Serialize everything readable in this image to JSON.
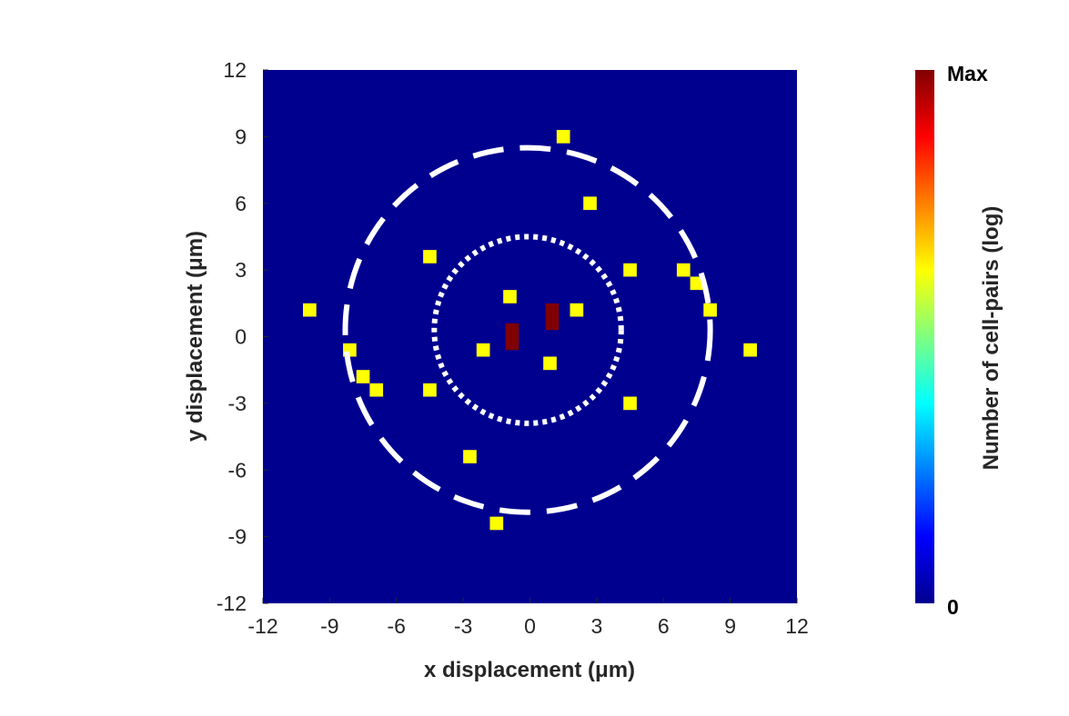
{
  "chart_data": {
    "type": "heatmap",
    "xlabel": "x displacement (μm)",
    "ylabel": "y displacement (μm)",
    "xlim": [
      -12,
      12
    ],
    "ylim": [
      -12,
      12
    ],
    "xticks": [
      "-12",
      "-9",
      "-6",
      "-3",
      "0",
      "3",
      "6",
      "9",
      "12"
    ],
    "yticks": [
      "-12",
      "-9",
      "-6",
      "-3",
      "0",
      "3",
      "6",
      "9",
      "12"
    ],
    "background_color": "#00008f",
    "colorbar": {
      "label": "Number of cell-pairs (log)",
      "min_label": "0",
      "max_label": "Max",
      "colormap": "jet"
    },
    "cells_max": [
      {
        "x": -0.8,
        "y": -0.3
      },
      {
        "x": -0.8,
        "y": 0.3
      },
      {
        "x": 1.0,
        "y": 0.6
      },
      {
        "x": 1.0,
        "y": 1.2
      }
    ],
    "cells_low": [
      {
        "x": -9.9,
        "y": 1.2
      },
      {
        "x": -8.1,
        "y": -0.6
      },
      {
        "x": -7.5,
        "y": -1.8
      },
      {
        "x": -6.9,
        "y": -2.4
      },
      {
        "x": -4.5,
        "y": 3.6
      },
      {
        "x": -4.5,
        "y": -2.4
      },
      {
        "x": -2.7,
        "y": -5.4
      },
      {
        "x": -2.1,
        "y": -0.6
      },
      {
        "x": -1.5,
        "y": -8.4
      },
      {
        "x": -0.9,
        "y": 1.8
      },
      {
        "x": 0.9,
        "y": -1.2
      },
      {
        "x": 1.5,
        "y": 9.0
      },
      {
        "x": 2.1,
        "y": 1.2
      },
      {
        "x": 2.7,
        "y": 6.0
      },
      {
        "x": 4.5,
        "y": 3.0
      },
      {
        "x": 4.5,
        "y": -3.0
      },
      {
        "x": 6.9,
        "y": 3.0
      },
      {
        "x": 7.5,
        "y": 2.4
      },
      {
        "x": 8.1,
        "y": 1.2
      },
      {
        "x": 9.9,
        "y": -0.6
      }
    ],
    "circles": [
      {
        "style": "dashed",
        "cx": -0.1,
        "cy": 0.3,
        "r": 8.2
      },
      {
        "style": "dotted",
        "cx": -0.1,
        "cy": 0.3,
        "r": 4.2
      }
    ]
  }
}
